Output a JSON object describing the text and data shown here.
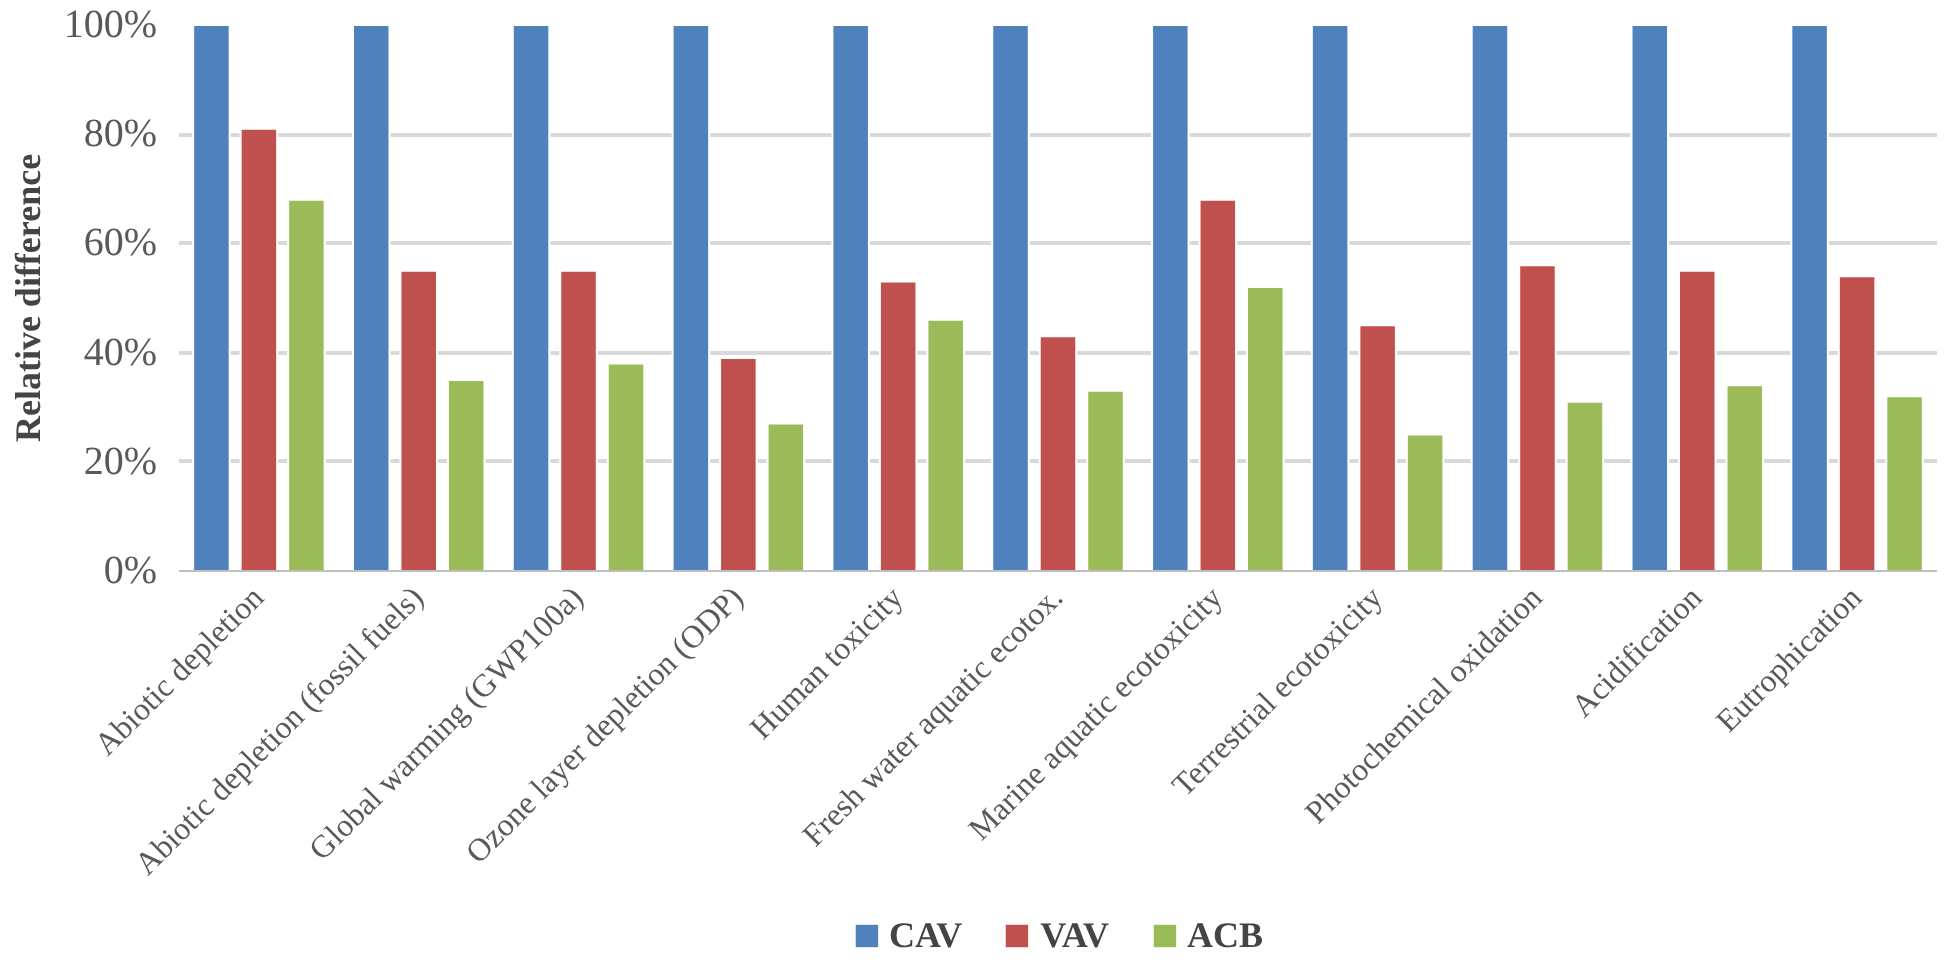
{
  "chart_data": {
    "type": "bar",
    "ylabel": "Relative difference",
    "categories": [
      "Abiotic depletion",
      "Abiotic depletion (fossil fuels)",
      "Global warming (GWP100a)",
      "Ozone layer depletion (ODP)",
      "Human toxicity",
      "Fresh water aquatic ecotox.",
      "Marine aquatic ecotoxicity",
      "Terrestrial ecotoxicity",
      "Photochemical oxidation",
      "Acidification",
      "Eutrophication"
    ],
    "series": [
      {
        "name": "CAV",
        "color": "#4f81bd",
        "values": [
          100,
          100,
          100,
          100,
          100,
          100,
          100,
          100,
          100,
          100,
          100
        ]
      },
      {
        "name": "VAV",
        "color": "#c0504d",
        "values": [
          81,
          55,
          55,
          39,
          53,
          43,
          68,
          45,
          56,
          55,
          54
        ]
      },
      {
        "name": "ACB",
        "color": "#9bbb59",
        "values": [
          68,
          35,
          38,
          27,
          46,
          33,
          52,
          25,
          31,
          34,
          32
        ]
      }
    ],
    "ylim": [
      0,
      100
    ],
    "yticks": [
      {
        "value": 0,
        "label": "0%"
      },
      {
        "value": 20,
        "label": "20%"
      },
      {
        "value": 40,
        "label": "40%"
      },
      {
        "value": 60,
        "label": "60%"
      },
      {
        "value": 80,
        "label": "80%"
      },
      {
        "value": 100,
        "label": "100%"
      }
    ],
    "grid": "y",
    "legend": "bottom"
  }
}
